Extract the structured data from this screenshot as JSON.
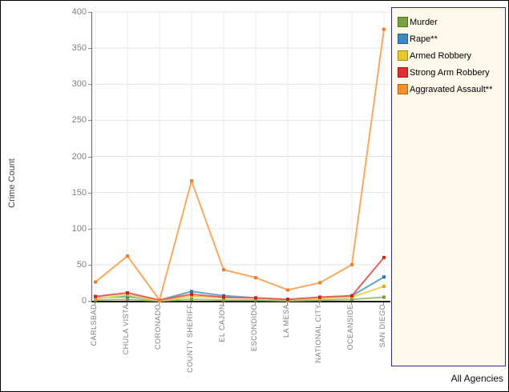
{
  "footer": {
    "label": "All Agencies"
  },
  "chart_data": {
    "type": "line",
    "title": "",
    "xlabel": "",
    "ylabel": "Crime Count",
    "ylim": [
      0,
      400
    ],
    "ytick_interval": 50,
    "grid": true,
    "legend_position": "right",
    "categories": [
      "CARLSBAD",
      "CHULA VISTA",
      "CORONADO",
      "COUNTY SHERIFF",
      "EL CAJON",
      "ESCONDIDO",
      "LA MESA",
      "NATIONAL CITY",
      "OCEANSIDE",
      "SAN DIEGO"
    ],
    "series": [
      {
        "name": "Murder",
        "swatch_fill": "#78a23f",
        "swatch_border": "#4f7020",
        "line_color": "#a0c06a",
        "marker_color": "#74a03e",
        "values": [
          1,
          2,
          0,
          2,
          1,
          1,
          0,
          1,
          2,
          5
        ]
      },
      {
        "name": "Rape**",
        "swatch_fill": "#3e88c4",
        "swatch_border": "#20618f",
        "line_color": "#62a3d0",
        "marker_color": "#2f77ab",
        "values": [
          4,
          6,
          1,
          13,
          7,
          4,
          2,
          3,
          7,
          33
        ]
      },
      {
        "name": "Armed Robbery",
        "swatch_fill": "#e5c72e",
        "swatch_border": "#a38d12",
        "line_color": "#e9d25e",
        "marker_color": "#d4af1e",
        "values": [
          3,
          8,
          0,
          6,
          4,
          4,
          2,
          3,
          5,
          20
        ]
      },
      {
        "name": "Strong Arm Robbery",
        "swatch_fill": "#df3030",
        "swatch_border": "#9c1717",
        "line_color": "#e4625a",
        "marker_color": "#cc2222",
        "values": [
          6,
          11,
          1,
          9,
          5,
          4,
          2,
          5,
          7,
          60
        ]
      },
      {
        "name": "Aggravated Assault**",
        "swatch_fill": "#f2902e",
        "swatch_border": "#b26014",
        "line_color": "#f8a860",
        "marker_color": "#ed7d31",
        "values": [
          26,
          62,
          1,
          166,
          43,
          32,
          15,
          25,
          50,
          376
        ]
      }
    ]
  }
}
